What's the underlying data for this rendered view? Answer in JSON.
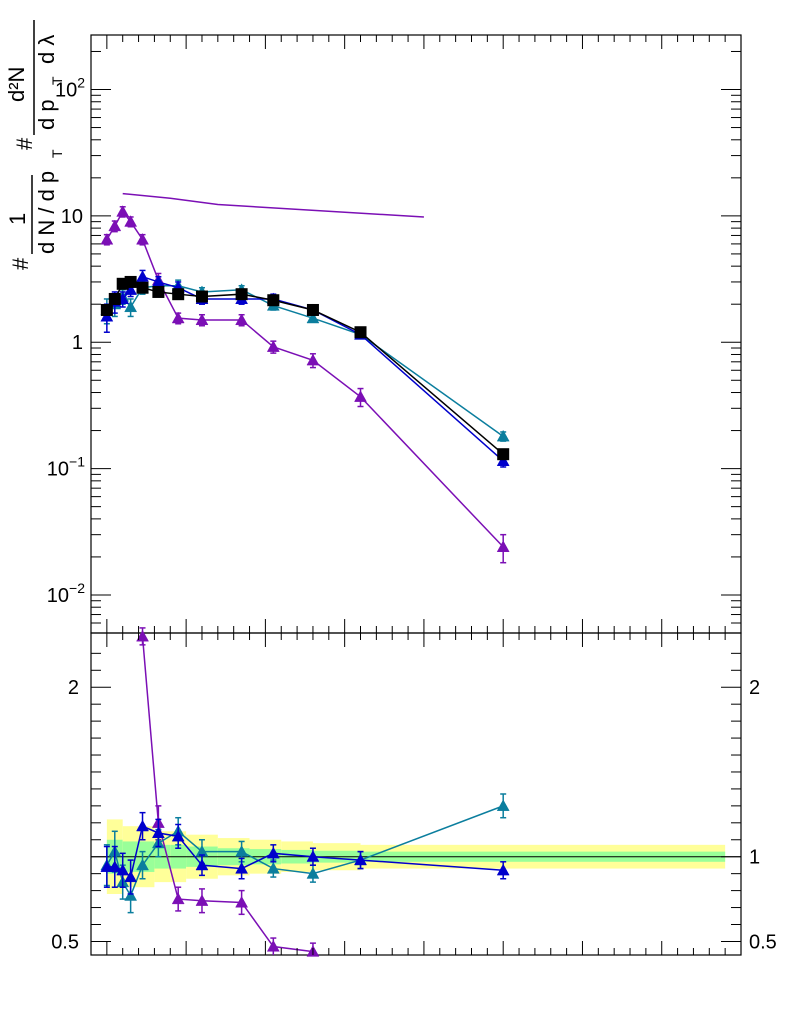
{
  "chart_data": [
    {
      "type": "line",
      "panel": "upper",
      "ylabel": "# (1/dN / d pT) (d²N / # d pT d λ)",
      "ylabel_parts": {
        "hash": "#",
        "one": "1",
        "den_main": "d N / d p",
        "sub_T": "T",
        "num2": "d²N",
        "den2_main": "d p",
        "den2_lambda": "d λ"
      },
      "yscale": "log",
      "ylim": [
        0.005,
        270
      ],
      "xlim": [
        -2,
        80
      ],
      "ytick_labels": [
        {
          "value": 0.01,
          "base": "10",
          "exp": "−2"
        },
        {
          "value": 0.1,
          "base": "10",
          "exp": "−1"
        },
        {
          "value": 1,
          "label": "1"
        },
        {
          "value": 10,
          "label": "10"
        },
        {
          "value": 100,
          "base": "10",
          "exp": "2"
        }
      ],
      "series": [
        {
          "name": "purple",
          "color": "#7b0fb5",
          "marker": "triangle",
          "x": [
            0,
            1,
            2,
            3,
            4.5,
            6.5,
            9,
            12,
            17,
            21,
            26,
            32,
            50
          ],
          "y": [
            6.5,
            8.3,
            10.8,
            9.0,
            6.5,
            3.1,
            1.55,
            1.5,
            1.5,
            0.92,
            0.72,
            0.37,
            0.024
          ],
          "err": [
            0.6,
            0.8,
            1.0,
            0.8,
            0.6,
            0.4,
            0.15,
            0.15,
            0.15,
            0.1,
            0.09,
            0.06,
            0.006
          ]
        },
        {
          "name": "teal",
          "color": "#0b7e9e",
          "marker": "triangle",
          "x": [
            0,
            1,
            2,
            3,
            4.5,
            6.5,
            9,
            12,
            17,
            21,
            26,
            32,
            50
          ],
          "y": [
            1.8,
            2.0,
            2.3,
            1.9,
            2.7,
            2.8,
            2.8,
            2.5,
            2.6,
            1.95,
            1.55,
            1.15,
            0.18
          ],
          "err": [
            0.4,
            0.4,
            0.3,
            0.3,
            0.3,
            0.3,
            0.3,
            0.2,
            0.2,
            0.15,
            0.1,
            0.08,
            0.015
          ]
        },
        {
          "name": "blue",
          "color": "#0000cc",
          "marker": "triangle",
          "x": [
            0,
            1,
            2,
            3,
            4.5,
            6.5,
            9,
            12,
            17,
            21,
            26,
            32,
            50
          ],
          "y": [
            1.6,
            2.1,
            2.2,
            2.6,
            3.3,
            3.0,
            2.7,
            2.2,
            2.2,
            2.2,
            1.8,
            1.15,
            0.115
          ],
          "err": [
            0.4,
            0.4,
            0.3,
            0.3,
            0.4,
            0.3,
            0.3,
            0.2,
            0.2,
            0.2,
            0.15,
            0.08,
            0.012
          ]
        },
        {
          "name": "black",
          "color": "#000000",
          "marker": "square",
          "x": [
            0,
            1,
            2,
            3,
            4.5,
            6.5,
            9,
            12,
            17,
            21,
            26,
            32,
            50
          ],
          "y": [
            1.8,
            2.2,
            2.9,
            3.0,
            2.7,
            2.5,
            2.4,
            2.3,
            2.4,
            2.15,
            1.8,
            1.2,
            0.13
          ],
          "err": [
            0,
            0,
            0,
            0,
            0,
            0,
            0,
            0,
            0,
            0,
            0,
            0,
            0
          ]
        },
        {
          "name": "reference",
          "color": "#7b0fb5",
          "marker": "none",
          "x": [
            2,
            8,
            14,
            40
          ],
          "y": [
            15,
            13.8,
            12.3,
            9.8
          ],
          "err": []
        }
      ]
    },
    {
      "type": "line",
      "panel": "lower",
      "ylabel": "",
      "ylim": [
        0.42,
        2.32
      ],
      "xlim": [
        -2,
        80
      ],
      "ytick_labels": [
        {
          "value": 0.5,
          "label": "0.5"
        },
        {
          "value": 1,
          "label": "1"
        },
        {
          "value": 2,
          "label": "2"
        }
      ],
      "reference_line": 1,
      "bands": [
        {
          "x": [
            0,
            2,
            4,
            6,
            8,
            10,
            14,
            18,
            22,
            26,
            32,
            78
          ],
          "yellow": [
            0.22,
            0.18,
            0.18,
            0.15,
            0.15,
            0.13,
            0.11,
            0.1,
            0.09,
            0.08,
            0.07,
            0.07
          ],
          "green": [
            0.1,
            0.09,
            0.09,
            0.07,
            0.07,
            0.06,
            0.05,
            0.045,
            0.04,
            0.035,
            0.03,
            0.03
          ]
        }
      ],
      "series": [
        {
          "name": "purple",
          "color": "#7b0fb5",
          "marker": "triangle",
          "x": [
            4.5,
            6.5,
            9,
            12,
            17,
            21,
            26
          ],
          "y": [
            2.3,
            1.2,
            0.75,
            0.74,
            0.73,
            0.47,
            0.44
          ],
          "err": [
            0.05,
            0.1,
            0.07,
            0.07,
            0.07,
            0.05,
            0.05
          ]
        },
        {
          "name": "teal",
          "color": "#0b7e9e",
          "marker": "triangle",
          "x": [
            0,
            1,
            2,
            3,
            4.5,
            6.5,
            9,
            12,
            17,
            21,
            26,
            32,
            50
          ],
          "y": [
            0.95,
            1.03,
            0.85,
            0.77,
            0.95,
            1.08,
            1.15,
            1.03,
            1.03,
            0.93,
            0.9,
            0.98,
            1.3
          ],
          "err": [
            0.12,
            0.12,
            0.1,
            0.1,
            0.08,
            0.08,
            0.08,
            0.07,
            0.06,
            0.05,
            0.05,
            0.05,
            0.07
          ]
        },
        {
          "name": "blue",
          "color": "#0000cc",
          "marker": "triangle",
          "x": [
            0,
            1,
            2,
            3,
            4.5,
            6.5,
            9,
            12,
            17,
            21,
            26,
            32,
            50
          ],
          "y": [
            0.94,
            0.94,
            0.92,
            0.88,
            1.18,
            1.14,
            1.12,
            0.95,
            0.93,
            1.02,
            1.0,
            0.98,
            0.92
          ],
          "err": [
            0.12,
            0.12,
            0.1,
            0.1,
            0.08,
            0.08,
            0.07,
            0.06,
            0.06,
            0.05,
            0.05,
            0.05,
            0.05
          ]
        }
      ]
    }
  ]
}
